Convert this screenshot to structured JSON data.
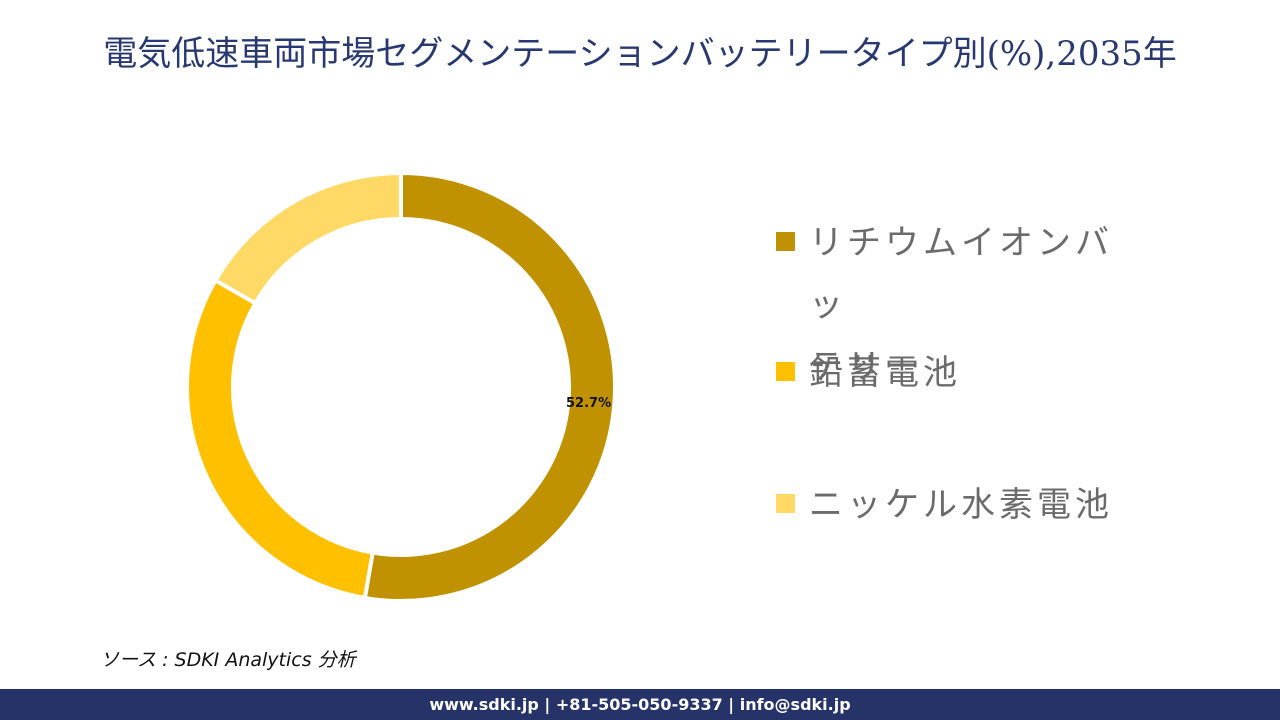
{
  "title": "電気低速車両市場セグメンテーションバッテリータイプ別(%),2035年",
  "chart_data": {
    "type": "pie",
    "subtype": "donut",
    "title": "電気低速車両市場セグメンテーションバッテリータイプ別(%),2035年",
    "categories": [
      "リチウムイオンバッテリー",
      "鉛蓄電池",
      "ニッケル水素電池"
    ],
    "values": [
      52.7,
      30.6,
      16.7
    ],
    "colors": [
      "#C09100",
      "#FFC000",
      "#FFD966"
    ],
    "data_labels": [
      "52.7%",
      "",
      ""
    ],
    "legend_position": "right",
    "start_angle": 0,
    "direction": "clockwise"
  },
  "data_label": "52.7%",
  "legend": {
    "items": [
      {
        "label": "リチウムイオンバッ\nテリー",
        "line1": "リチウムイオンバッ",
        "line2": "テリー",
        "color": "#C09100"
      },
      {
        "label": "鉛蓄電池",
        "color": "#FFC000"
      },
      {
        "label": "ニッケル水素電池",
        "color": "#FFD966"
      }
    ]
  },
  "source": "ソース : SDKI Analytics  分析",
  "footer": "www.sdki.jp | +81-505-050-9337 | info@sdki.jp"
}
